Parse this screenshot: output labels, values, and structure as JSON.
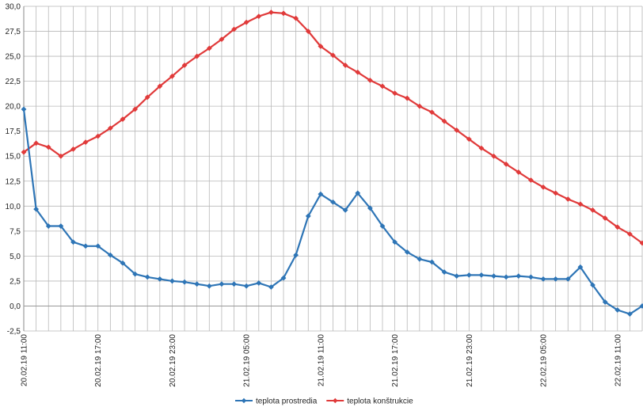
{
  "chart_data": {
    "type": "line",
    "ylim": [
      -2.5,
      30
    ],
    "y_ticks": [
      "-2,5",
      "0,0",
      "2,5",
      "5,0",
      "7,5",
      "10,0",
      "12,5",
      "15,0",
      "17,5",
      "20,0",
      "22,5",
      "25,0",
      "27,5",
      "30,0"
    ],
    "x_tick_labels": [
      "20.02.19 11:00",
      "20.02.19 17:00",
      "20.02.19 23:00",
      "21.02.19 05:00",
      "21.02.19 11:00",
      "21.02.19 17:00",
      "21.02.19 23:00",
      "22.02.19 05:00",
      "22.02.19 11:00"
    ],
    "x_range": [
      "20.02.19 11:00",
      "22.02.19 13:00"
    ],
    "grid": true,
    "legend_position": "bottom",
    "series": [
      {
        "name": "teplota prostredia",
        "color": "#2e75b6",
        "values": [
          19.7,
          9.7,
          8.0,
          8.0,
          6.4,
          6.0,
          6.0,
          5.1,
          4.3,
          3.2,
          2.9,
          2.7,
          2.5,
          2.4,
          2.2,
          2.0,
          2.2,
          2.2,
          2.0,
          2.3,
          1.9,
          2.8,
          5.1,
          9.0,
          11.2,
          10.4,
          9.6,
          11.3,
          9.8,
          8.0,
          6.4,
          5.4,
          4.7,
          4.4,
          3.4,
          3.0,
          3.1,
          3.1,
          3.0,
          2.9,
          3.0,
          2.9,
          2.7,
          2.7,
          2.7,
          3.9,
          2.1,
          0.4,
          -0.4,
          -0.8,
          0.0
        ]
      },
      {
        "name": "teplota konštrukcie",
        "color": "#e03a3a",
        "values": [
          15.4,
          16.3,
          15.9,
          15.0,
          15.7,
          16.4,
          17.0,
          17.8,
          18.7,
          19.7,
          20.9,
          22.0,
          23.0,
          24.1,
          25.0,
          25.8,
          26.7,
          27.7,
          28.4,
          29.0,
          29.4,
          29.3,
          28.8,
          27.5,
          26.0,
          25.1,
          24.1,
          23.4,
          22.6,
          22.0,
          21.3,
          20.8,
          20.0,
          19.4,
          18.5,
          17.6,
          16.7,
          15.8,
          15.0,
          14.2,
          13.4,
          12.6,
          11.9,
          11.3,
          10.7,
          10.2,
          9.6,
          8.8,
          7.9,
          7.2,
          6.3
        ]
      }
    ]
  }
}
